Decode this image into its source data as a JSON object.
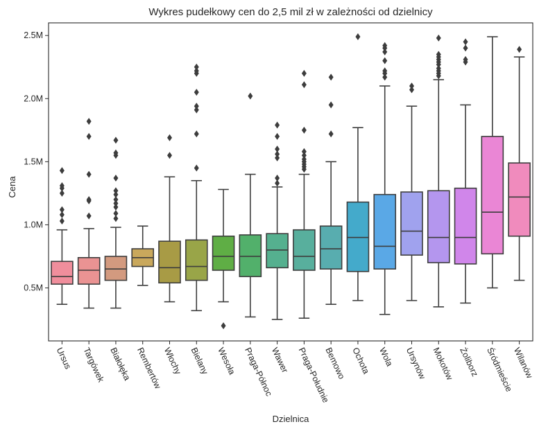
{
  "chart_data": {
    "type": "boxplot",
    "title": "Wykres pudełkowy cen do 2,5 mil zł w zależności od dzielnicy",
    "xlabel": "Dzielnica",
    "ylabel": "Cena",
    "ylim": [
      0.08,
      2.6
    ],
    "yticks": [
      {
        "value": 0.5,
        "label": "0.5M"
      },
      {
        "value": 1.0,
        "label": "1.0M"
      },
      {
        "value": 1.5,
        "label": "1.5M"
      },
      {
        "value": 2.0,
        "label": "2.0M"
      },
      {
        "value": 2.5,
        "label": "2.5M"
      }
    ],
    "grid": false,
    "categories": [
      "Ursus",
      "Targówek",
      "Białołęka",
      "Rembertów",
      "Włochy",
      "Bielany",
      "Wesoła",
      "Praga-Północ",
      "Wawer",
      "Praga-Południe",
      "Bemowo",
      "Ochota",
      "Wola",
      "Ursynów",
      "Mokotów",
      "Żoliborz",
      "Śródmieście",
      "Wilanów"
    ],
    "colors": [
      "#f08e9c",
      "#ea9393",
      "#d39a7f",
      "#c9a85c",
      "#a89b45",
      "#99a548",
      "#5fae45",
      "#52b06b",
      "#55b08f",
      "#58af9d",
      "#58adaf",
      "#44aacb",
      "#5aa8e6",
      "#a0a2ee",
      "#b496ee",
      "#d086ea",
      "#ea86d5",
      "#f08bbd"
    ],
    "boxes": [
      {
        "whislo": 0.37,
        "q1": 0.53,
        "med": 0.59,
        "q3": 0.71,
        "whishi": 0.96,
        "fliers": [
          1.03,
          1.08,
          1.12,
          1.25,
          1.29,
          1.31,
          1.43
        ]
      },
      {
        "whislo": 0.34,
        "q1": 0.53,
        "med": 0.64,
        "q3": 0.74,
        "whishi": 0.97,
        "fliers": [
          1.07,
          1.19,
          1.2,
          1.4,
          1.7,
          1.82
        ]
      },
      {
        "whislo": 0.34,
        "q1": 0.56,
        "med": 0.65,
        "q3": 0.75,
        "whishi": 0.98,
        "fliers": [
          1.05,
          1.09,
          1.14,
          1.17,
          1.2,
          1.24,
          1.27,
          1.37,
          1.55,
          1.57,
          1.67
        ]
      },
      {
        "whislo": 0.52,
        "q1": 0.67,
        "med": 0.74,
        "q3": 0.81,
        "whishi": 0.99,
        "fliers": []
      },
      {
        "whislo": 0.39,
        "q1": 0.54,
        "med": 0.66,
        "q3": 0.87,
        "whishi": 1.38,
        "fliers": [
          1.55,
          1.69
        ]
      },
      {
        "whislo": 0.32,
        "q1": 0.56,
        "med": 0.67,
        "q3": 0.88,
        "whishi": 1.35,
        "fliers": [
          1.45,
          1.72,
          1.91,
          1.94,
          2.05,
          2.2,
          2.22,
          2.25
        ]
      },
      {
        "whislo": 0.39,
        "q1": 0.64,
        "med": 0.75,
        "q3": 0.91,
        "whishi": 1.28,
        "fliers": [
          0.2
        ]
      },
      {
        "whislo": 0.27,
        "q1": 0.59,
        "med": 0.75,
        "q3": 0.92,
        "whishi": 1.4,
        "fliers": [
          2.02
        ]
      },
      {
        "whislo": 0.25,
        "q1": 0.66,
        "med": 0.8,
        "q3": 0.93,
        "whishi": 1.3,
        "fliers": [
          1.33,
          1.37,
          1.53,
          1.56,
          1.6,
          1.7,
          1.79
        ]
      },
      {
        "whislo": 0.26,
        "q1": 0.64,
        "med": 0.75,
        "q3": 0.96,
        "whishi": 1.4,
        "fliers": [
          1.44,
          1.46,
          1.48,
          1.5,
          1.52,
          1.55,
          1.58,
          1.75,
          2.11,
          2.2
        ]
      },
      {
        "whislo": 0.37,
        "q1": 0.65,
        "med": 0.81,
        "q3": 0.99,
        "whishi": 1.5,
        "fliers": [
          1.72,
          1.95,
          2.17
        ]
      },
      {
        "whislo": 0.4,
        "q1": 0.63,
        "med": 0.9,
        "q3": 1.18,
        "whishi": 1.77,
        "fliers": [
          2.49
        ]
      },
      {
        "whislo": 0.29,
        "q1": 0.65,
        "med": 0.83,
        "q3": 1.24,
        "whishi": 2.1,
        "fliers": [
          2.17,
          2.2,
          2.22,
          2.3,
          2.37,
          2.4,
          2.42
        ]
      },
      {
        "whislo": 0.4,
        "q1": 0.76,
        "med": 0.95,
        "q3": 1.26,
        "whishi": 1.94,
        "fliers": [
          2.07,
          2.1
        ]
      },
      {
        "whislo": 0.35,
        "q1": 0.7,
        "med": 0.9,
        "q3": 1.27,
        "whishi": 2.15,
        "fliers": [
          2.18,
          2.2,
          2.22,
          2.24,
          2.27,
          2.29,
          2.31,
          2.33,
          2.35,
          2.48
        ]
      },
      {
        "whislo": 0.38,
        "q1": 0.69,
        "med": 0.9,
        "q3": 1.29,
        "whishi": 1.95,
        "fliers": [
          2.29,
          2.31,
          2.4,
          2.45
        ]
      },
      {
        "whislo": 0.5,
        "q1": 0.77,
        "med": 1.1,
        "q3": 1.7,
        "whishi": 2.49,
        "fliers": []
      },
      {
        "whislo": 0.56,
        "q1": 0.91,
        "med": 1.22,
        "q3": 1.49,
        "whishi": 2.33,
        "fliers": [
          2.39
        ]
      }
    ]
  }
}
